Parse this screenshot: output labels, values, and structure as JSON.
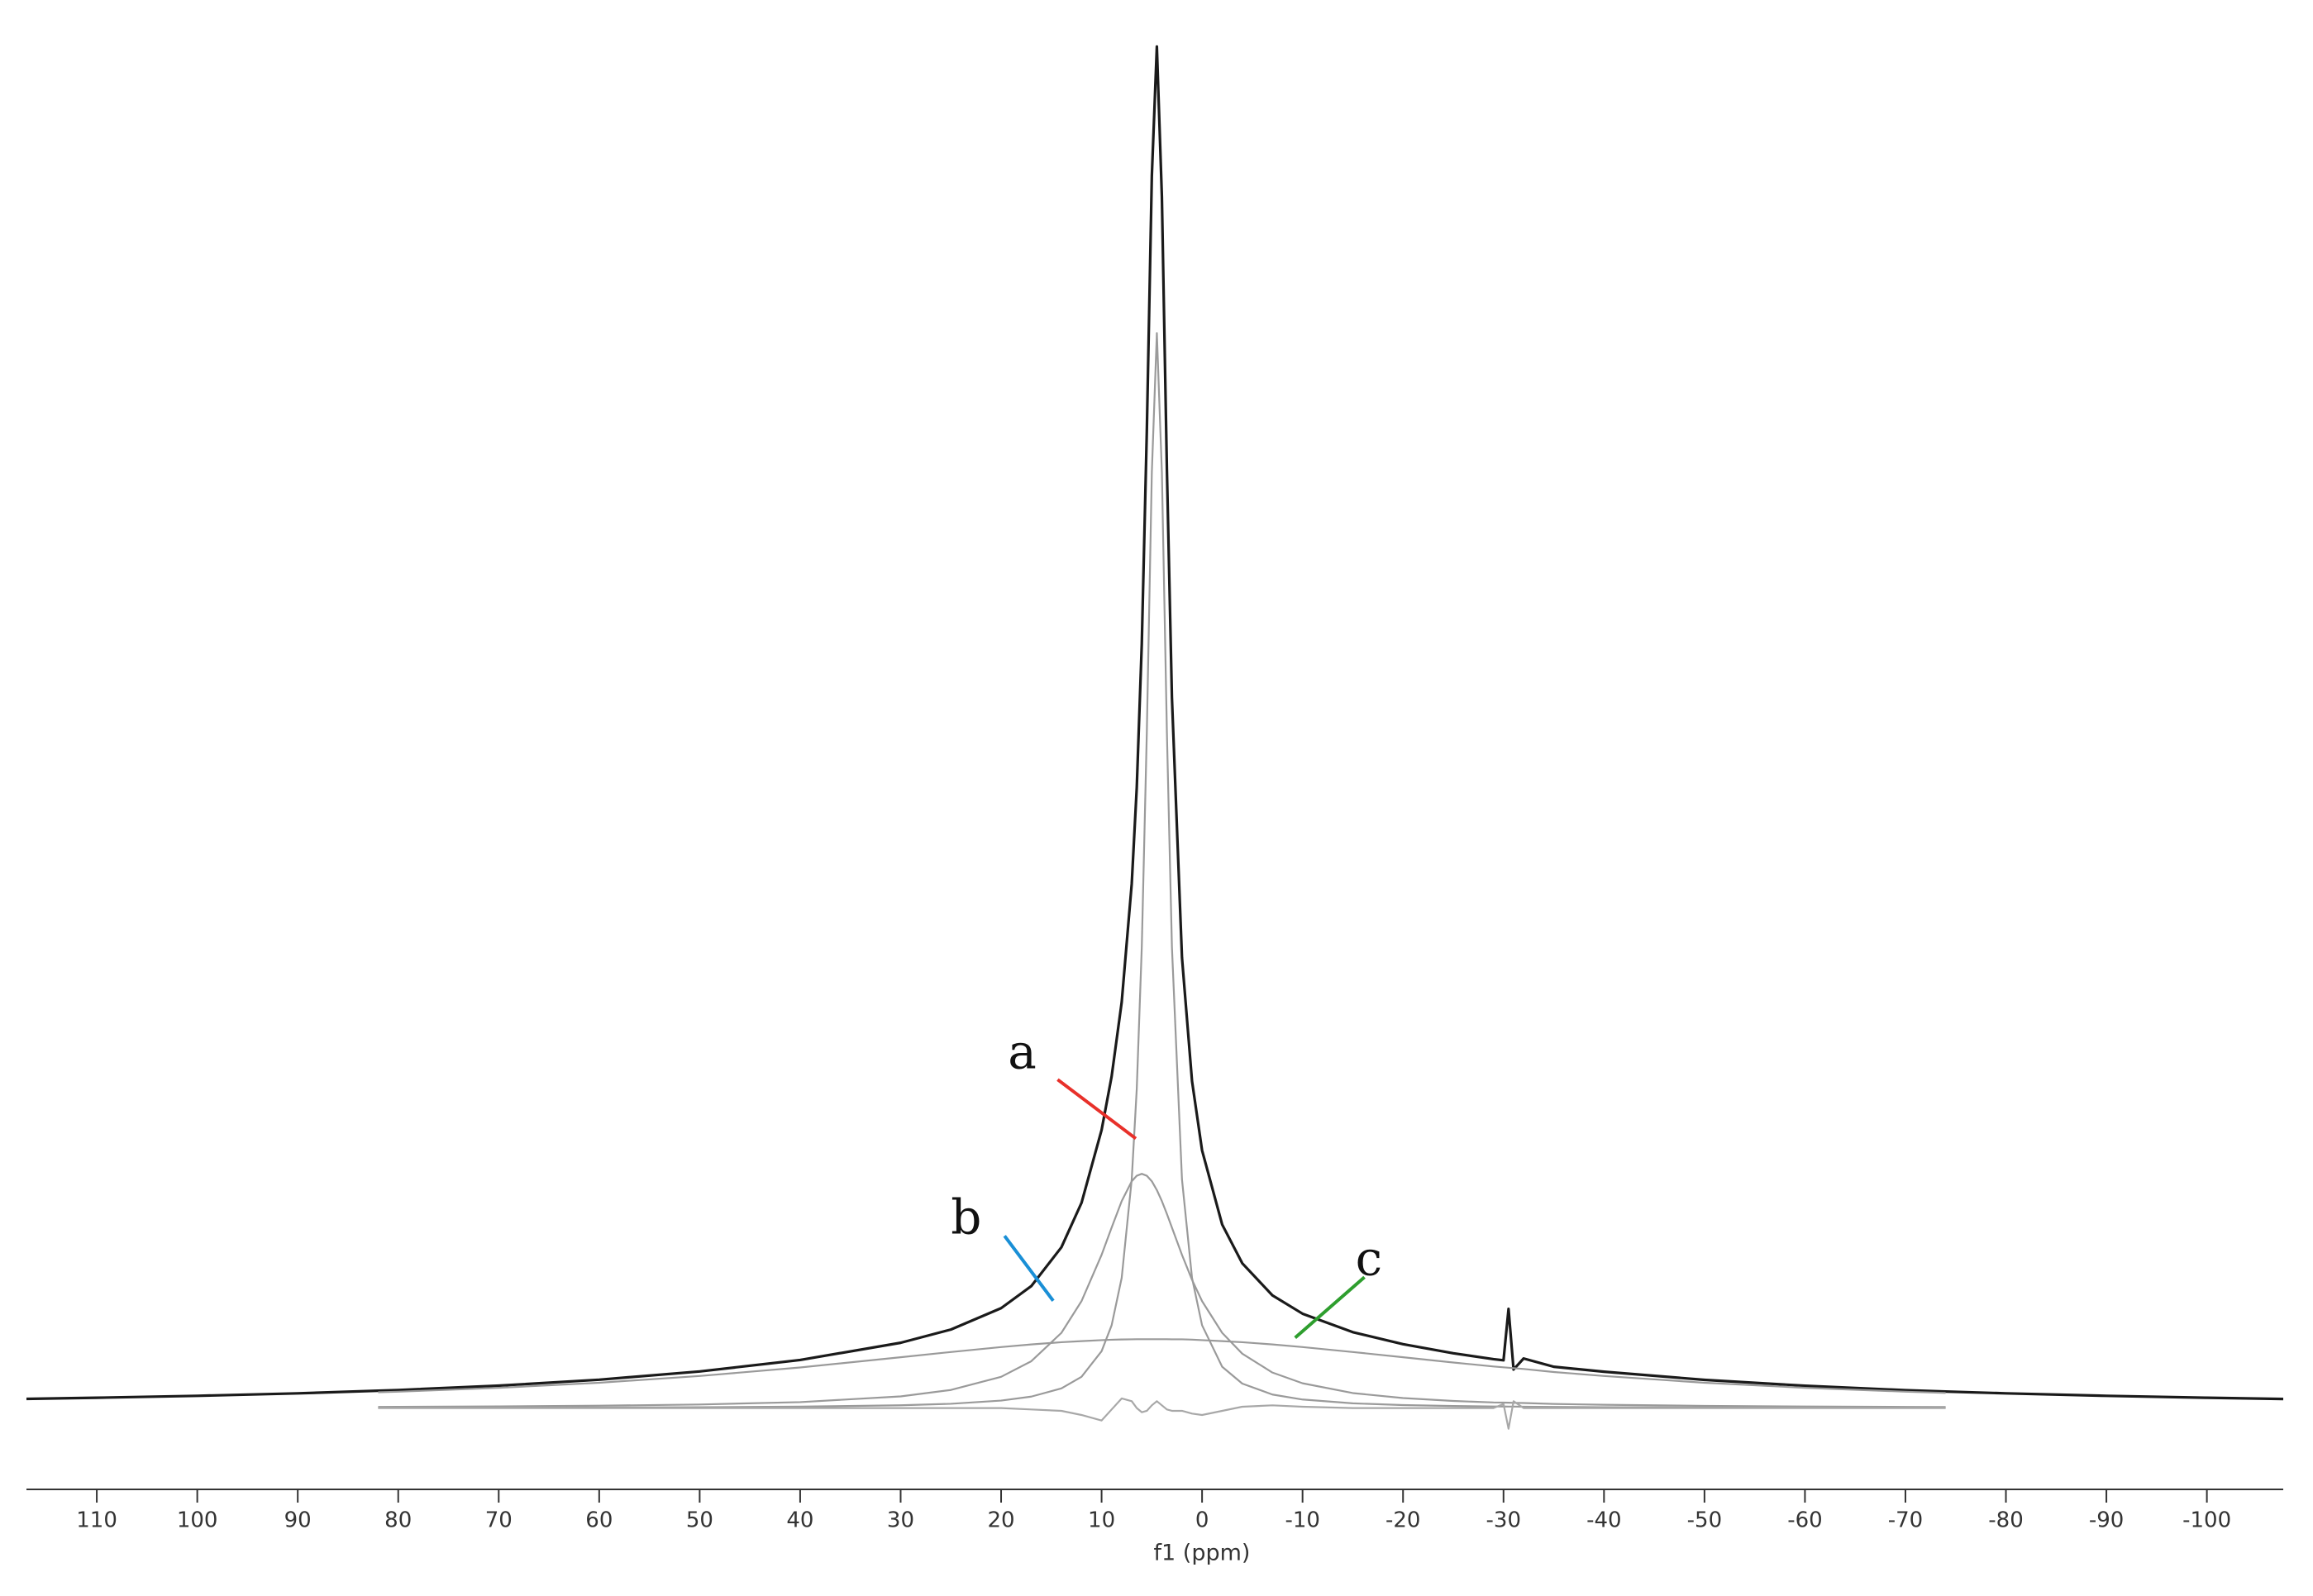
{
  "chart_data": {
    "type": "line",
    "xlabel": "f1 (ppm)",
    "xlim": [
      117,
      -107.6
    ],
    "xticks": [
      110,
      100,
      90,
      80,
      70,
      60,
      50,
      40,
      30,
      20,
      10,
      0,
      -10,
      -20,
      -30,
      -40,
      -50,
      -60,
      -70,
      -80,
      -90,
      -100
    ],
    "ylim": [
      -2,
      102
    ],
    "grid": false,
    "x": [
      117,
      110,
      100,
      90,
      82,
      80,
      70,
      60,
      50,
      40,
      30,
      25,
      20,
      17,
      14,
      12,
      10,
      9,
      8,
      7,
      6.5,
      6,
      5.5,
      5,
      4.5,
      4,
      3.5,
      3,
      2,
      1,
      0,
      -2,
      -4,
      -7,
      -10,
      -15,
      -20,
      -25,
      -29,
      -30,
      -30.5,
      -31,
      -32,
      -35,
      -40,
      -50,
      -60,
      -70,
      -74,
      -80,
      -90,
      -100,
      -107.6
    ],
    "series": [
      {
        "color": "#1a1a1a",
        "values": [
          0.67,
          0.75,
          0.89,
          1.07,
          1.26,
          1.31,
          1.63,
          2.06,
          2.66,
          3.49,
          4.74,
          5.7,
          7.25,
          8.85,
          11.67,
          14.89,
          20.18,
          24.07,
          29.45,
          38.05,
          45.03,
          55.46,
          70.86,
          89.4,
          98.8,
          87.9,
          68.1,
          51.56,
          32.7,
          23.73,
          18.7,
          13.32,
          10.51,
          8.18,
          6.85,
          5.51,
          4.64,
          3.98,
          3.55,
          3.47,
          7.2,
          2.8,
          3.6,
          3.0,
          2.64,
          2.05,
          1.62,
          1.3,
          1.2,
          1.07,
          0.89,
          0.75,
          0.66
        ]
      },
      {
        "name": "a",
        "color": "#9a9a9a",
        "label_color": "#e8302a",
        "values": [
          null,
          null,
          null,
          null,
          0.022,
          0.023,
          0.031,
          0.043,
          0.064,
          0.105,
          0.203,
          0.312,
          0.546,
          0.834,
          1.43,
          2.27,
          4.13,
          6.01,
          9.45,
          16.6,
          23.17,
          33.46,
          49.0,
          67.9,
          78,
          67.9,
          49.0,
          33.46,
          16.6,
          9.45,
          6.01,
          3.0,
          1.78,
          0.984,
          0.622,
          0.345,
          0.219,
          0.151,
          0.117,
          0.113,
          0.11,
          0.11,
          0.1,
          0.084,
          0.067,
          0.044,
          0.032,
          0.024,
          0.021,
          null,
          null,
          null,
          null
        ]
      },
      {
        "name": "b",
        "color": "#9a9a9a",
        "label_color": "#1a8fd6",
        "values": [
          null,
          null,
          null,
          null,
          0.089,
          0.094,
          0.125,
          0.175,
          0.262,
          0.434,
          0.848,
          1.315,
          2.27,
          3.4,
          5.46,
          7.76,
          11.12,
          13.1,
          15.02,
          16.46,
          16.86,
          17,
          16.86,
          16.46,
          15.82,
          15.02,
          14.09,
          13.1,
          11.12,
          9.31,
          7.76,
          5.46,
          3.95,
          2.58,
          1.8,
          1.09,
          0.728,
          0.518,
          0.41,
          0.4,
          0.39,
          0.38,
          0.37,
          0.3,
          0.24,
          0.161,
          0.117,
          0.089,
          0.079,
          null,
          null,
          null,
          null
        ]
      },
      {
        "name": "c",
        "color": "#9a9a9a",
        "label_color": "#2e9e2e",
        "values": [
          null,
          null,
          null,
          null,
          1.15,
          1.19,
          1.47,
          1.84,
          2.33,
          2.95,
          3.69,
          4.07,
          4.43,
          4.62,
          4.78,
          4.86,
          4.93,
          4.96,
          4.98,
          4.99,
          5.0,
          5.0,
          5.0,
          5.0,
          5.0,
          5.0,
          5.0,
          4.99,
          4.99,
          4.97,
          4.93,
          4.86,
          4.78,
          4.62,
          4.43,
          4.07,
          3.69,
          3.31,
          3.02,
          2.96,
          2.93,
          2.9,
          2.84,
          2.62,
          2.33,
          1.84,
          1.47,
          1.19,
          1.1,
          null,
          null,
          null,
          null
        ]
      },
      {
        "color": "#a8a8a8",
        "values": [
          null,
          null,
          null,
          null,
          0,
          0,
          0,
          0,
          0,
          0,
          0,
          0,
          0,
          -0.1,
          -0.2,
          -0.5,
          -0.9,
          -0.1,
          0.7,
          0.5,
          0,
          -0.3,
          -0.2,
          0.2,
          0.5,
          0.2,
          -0.1,
          -0.2,
          -0.2,
          -0.4,
          -0.5,
          -0.2,
          0.1,
          0.2,
          0.1,
          0,
          0,
          0,
          0,
          0.3,
          -1.5,
          0.5,
          0,
          0,
          0,
          0,
          0,
          0,
          0,
          null,
          null,
          null,
          null
        ]
      }
    ]
  }
}
